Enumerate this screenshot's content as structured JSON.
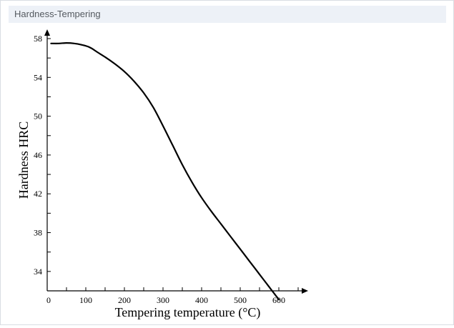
{
  "panel": {
    "title": "Hardness-Tempering"
  },
  "chart_data": {
    "type": "line",
    "title": "",
    "xlabel": "Tempering temperature (°C)",
    "ylabel": "Hardness HRC",
    "xlim": [
      0,
      660
    ],
    "ylim": [
      32,
      59
    ],
    "x_ticks": [
      0,
      100,
      200,
      300,
      400,
      500,
      600
    ],
    "y_ticks": [
      34,
      38,
      42,
      46,
      50,
      54,
      58
    ],
    "x_minor_step": 50,
    "y_minor_step": 2,
    "grid": false,
    "series": [
      {
        "x": [
          10,
          30,
          50,
          70,
          90,
          110,
          130,
          150,
          175,
          200,
          225,
          250,
          275,
          300,
          325,
          350,
          375,
          400,
          425,
          450,
          475,
          500,
          525,
          550,
          575,
          600
        ],
        "y": [
          57.5,
          57.5,
          57.55,
          57.5,
          57.35,
          57.1,
          56.6,
          56.1,
          55.4,
          54.6,
          53.6,
          52.4,
          50.9,
          49.0,
          47.0,
          45.0,
          43.2,
          41.6,
          40.2,
          38.9,
          37.6,
          36.3,
          35.0,
          33.7,
          32.4,
          31.1
        ]
      }
    ]
  }
}
